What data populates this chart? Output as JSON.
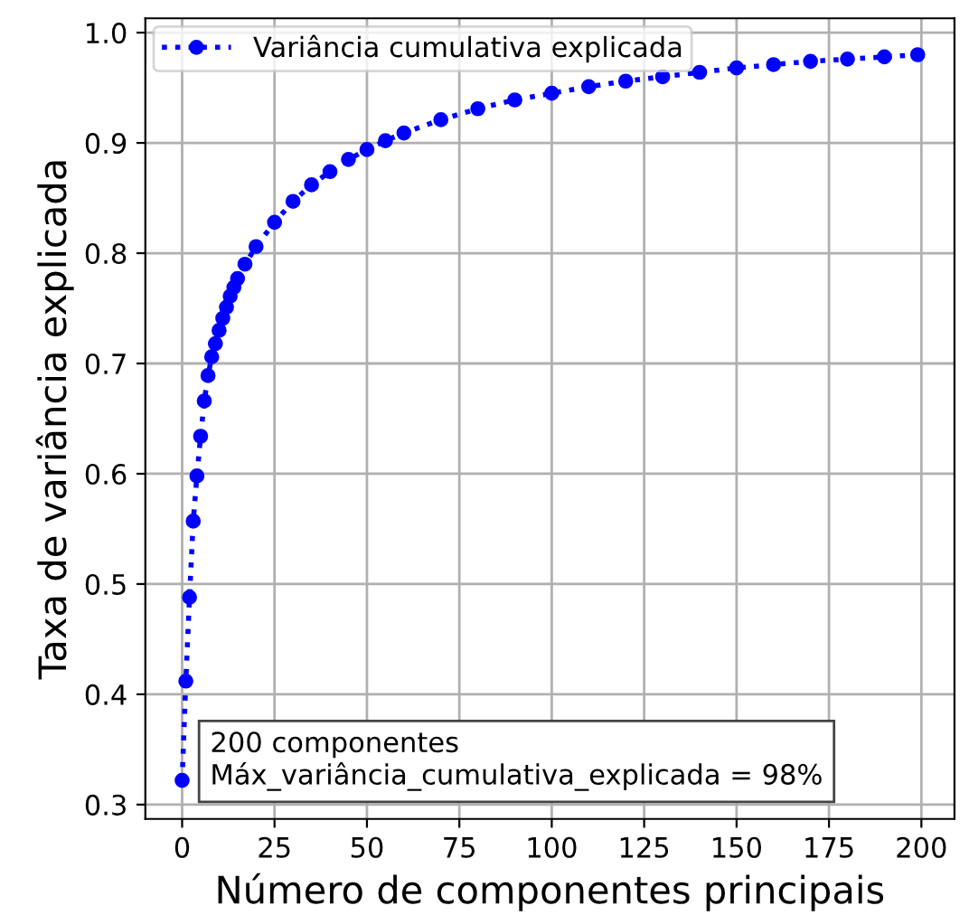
{
  "chart_data": {
    "type": "line",
    "xlabel": "Número de componentes principais",
    "ylabel": "Taxa de variância explicada",
    "series": [
      {
        "name": "Variância cumulativa explicada",
        "color": "#0000ff",
        "x": [
          0,
          1,
          2,
          3,
          4,
          5,
          6,
          7,
          8,
          9,
          10,
          11,
          12,
          13,
          14,
          15,
          17,
          20,
          25,
          30,
          35,
          40,
          45,
          50,
          55,
          60,
          70,
          80,
          90,
          100,
          110,
          120,
          130,
          140,
          150,
          160,
          170,
          180,
          190,
          199
        ],
        "values": [
          0.322,
          0.412,
          0.488,
          0.557,
          0.598,
          0.634,
          0.666,
          0.689,
          0.706,
          0.718,
          0.73,
          0.741,
          0.751,
          0.761,
          0.769,
          0.777,
          0.79,
          0.806,
          0.828,
          0.847,
          0.862,
          0.874,
          0.885,
          0.894,
          0.902,
          0.909,
          0.921,
          0.931,
          0.939,
          0.945,
          0.951,
          0.956,
          0.96,
          0.964,
          0.968,
          0.971,
          0.974,
          0.976,
          0.978,
          0.98
        ]
      }
    ],
    "xlim": [
      -9.95,
      208.95
    ],
    "xticks": [
      0,
      25,
      50,
      75,
      100,
      125,
      150,
      175,
      200
    ],
    "ylim": [
      0.287,
      1.013
    ],
    "yticks": [
      0.3,
      0.4,
      0.5,
      0.6,
      0.7,
      0.8,
      0.9,
      {
        "value": 1.0,
        "label": "1.0"
      }
    ],
    "grid": true,
    "legend": "top left",
    "marker": "circle",
    "line_style": "dotted",
    "annotations": [
      "200 componentes\nMáx_variância_cumulativa_explicada = 98%"
    ]
  }
}
